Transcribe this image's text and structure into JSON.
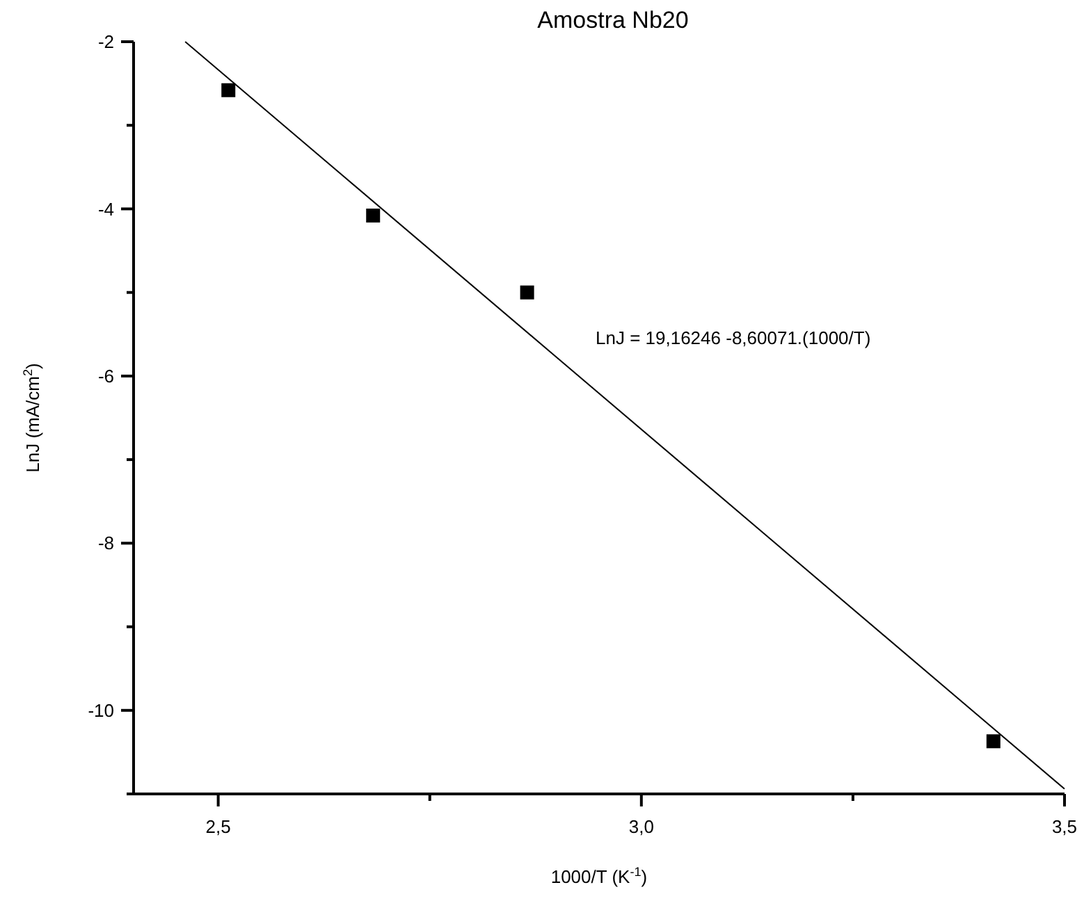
{
  "chart_data": {
    "type": "scatter",
    "title": "Amostra Nb20",
    "xlabel": "1000/T (K$^{-1}$)",
    "ylabel": "LnJ (mA/cm$^{2}$)",
    "xlim": [
      2.4,
      3.5
    ],
    "xticks": [
      {
        "value": 2.5,
        "label": "2,5"
      },
      {
        "value": 2.75,
        "label": null
      },
      {
        "value": 3.0,
        "label": "3,0"
      },
      {
        "value": 3.25,
        "label": null
      },
      {
        "value": 3.5,
        "label": "3,5"
      }
    ],
    "ylim": [
      -11,
      -2
    ],
    "yticks": [
      {
        "value": -11,
        "label": null
      },
      {
        "value": -10,
        "label": "-10"
      },
      {
        "value": -9,
        "label": null
      },
      {
        "value": -8,
        "label": "-8"
      },
      {
        "value": -7,
        "label": null
      },
      {
        "value": -6,
        "label": "-6"
      },
      {
        "value": -5,
        "label": null
      },
      {
        "value": -4,
        "label": "-4"
      },
      {
        "value": -3,
        "label": null
      },
      {
        "value": -2,
        "label": "-2"
      }
    ],
    "grid": false,
    "series": [
      {
        "type": "scatter",
        "color": "#000000",
        "marker": "square",
        "x": [
          2.512,
          2.683,
          2.865,
          3.416
        ],
        "values": [
          -2.58,
          -4.08,
          -5.0,
          -10.37
        ]
      },
      {
        "type": "line",
        "color": "#000000",
        "marker": "none",
        "line_style": "solid",
        "x": [
          2.461,
          3.5
        ],
        "values": [
          -2.0,
          -10.94
        ]
      }
    ],
    "annotations": [
      "LnJ = 19,16246 -8,60071.(1000/T)"
    ]
  }
}
